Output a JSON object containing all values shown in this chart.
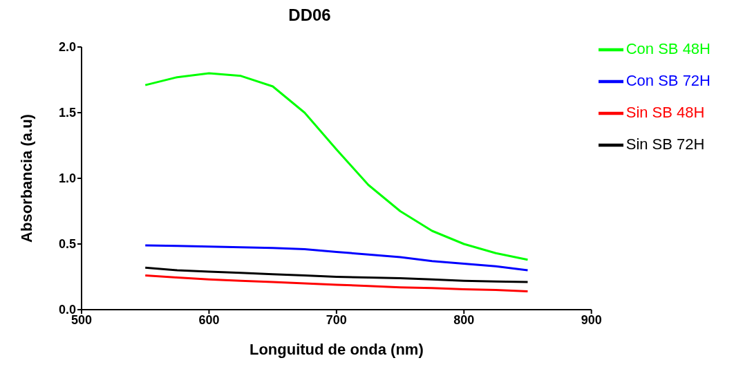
{
  "chart_data": {
    "type": "line",
    "title": "DD06",
    "xlabel": "Longuitud de onda (nm)",
    "ylabel": "Absorbancia (a.u)",
    "x": [
      550,
      575,
      600,
      625,
      650,
      675,
      700,
      725,
      750,
      775,
      800,
      825,
      850
    ],
    "series": [
      {
        "name": "Sin SB 48H",
        "color": "#ff0000",
        "values": [
          0.26,
          0.245,
          0.23,
          0.22,
          0.21,
          0.2,
          0.19,
          0.18,
          0.17,
          0.165,
          0.155,
          0.15,
          0.14
        ]
      },
      {
        "name": "Con SB 48H",
        "color": "#00ff00",
        "values": [
          1.71,
          1.77,
          1.8,
          1.78,
          1.7,
          1.5,
          1.22,
          0.95,
          0.75,
          0.6,
          0.5,
          0.43,
          0.38
        ]
      },
      {
        "name": "Sin SB 72H",
        "color": "#000000",
        "values": [
          0.32,
          0.3,
          0.29,
          0.28,
          0.27,
          0.26,
          0.25,
          0.245,
          0.24,
          0.23,
          0.22,
          0.215,
          0.21
        ]
      },
      {
        "name": "Con SB 72H",
        "color": "#0000ff",
        "values": [
          0.49,
          0.485,
          0.48,
          0.475,
          0.47,
          0.46,
          0.44,
          0.42,
          0.4,
          0.37,
          0.35,
          0.33,
          0.3
        ]
      }
    ],
    "xlim": [
      500,
      900
    ],
    "xticks": [
      500,
      600,
      700,
      800,
      900
    ],
    "ylim": [
      0,
      2
    ],
    "yticks": [
      {
        "value": 0,
        "label": "0.0"
      },
      {
        "value": 0.5,
        "label": "0.5"
      },
      {
        "value": 1,
        "label": "1.0"
      },
      {
        "value": 1.5,
        "label": "1.5"
      },
      {
        "value": 2,
        "label": "2.0"
      }
    ],
    "grid": false,
    "legend": "top right",
    "marker": "none",
    "line_style": "solid"
  }
}
